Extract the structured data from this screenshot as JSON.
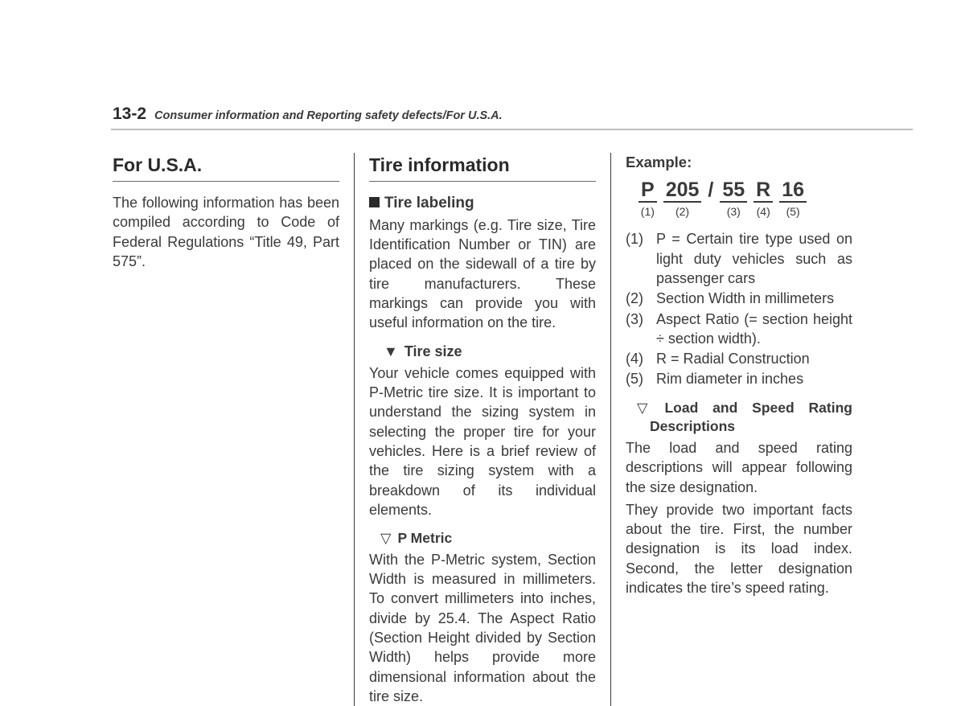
{
  "header": {
    "page_number": "13-2",
    "chapter_text": "Consumer information and Reporting safety defects/For U.S.A."
  },
  "col1": {
    "title": "For U.S.A.",
    "p1": "The following information has been compiled according to Code of Federal Regulations “Title 49, Part 575”."
  },
  "col2": {
    "title": "Tire information",
    "h_labeling": "Tire labeling",
    "p_labeling": "Many markings (e.g. Tire size, Tire Identification Number or TIN) are placed on the sidewall of a tire by tire manufacturers. These markings can provide you with useful information on the tire.",
    "h_tiresize": "Tire size",
    "p_tiresize": "Your vehicle comes equipped with P-Metric tire size. It is important to understand the sizing system in selecting the proper tire for your vehicles. Here is a brief review of the tire sizing system with a breakdown of its individual elements.",
    "h_pmetric": "P Metric",
    "p_pmetric": "With the P-Metric system, Section Width is measured in millimeters. To convert millimeters into inches, divide by 25.4. The Aspect Ratio (Section Height divided by Section Width) helps provide more dimensional information about the tire size."
  },
  "col3": {
    "example_label": "Example:",
    "tire": {
      "s1": "P",
      "n1": "(1)",
      "s2": "205",
      "n2": "(2)",
      "slash": "/",
      "s3": "55",
      "n3": "(3)",
      "s4": "R",
      "n4": "(4)",
      "s5": "16",
      "n5": "(5)"
    },
    "defs": {
      "d1n": "(1)",
      "d1t": "P = Certain tire type used on light duty vehicles such as passenger cars",
      "d2n": "(2)",
      "d2t": "Section Width in millimeters",
      "d3n": "(3)",
      "d3t": "Aspect Ratio (= section height ÷ section width).",
      "d4n": "(4)",
      "d4t": "R = Radial Construction",
      "d5n": "(5)",
      "d5t": "Rim diameter in inches"
    },
    "h_load": "Load and Speed Rating Descriptions",
    "p_load1": "The load and speed rating descriptions will appear following the size designation.",
    "p_load2": "They provide two important facts about the tire. First, the number designation is its load index. Second, the letter designation indicates the tire’s speed rating."
  }
}
